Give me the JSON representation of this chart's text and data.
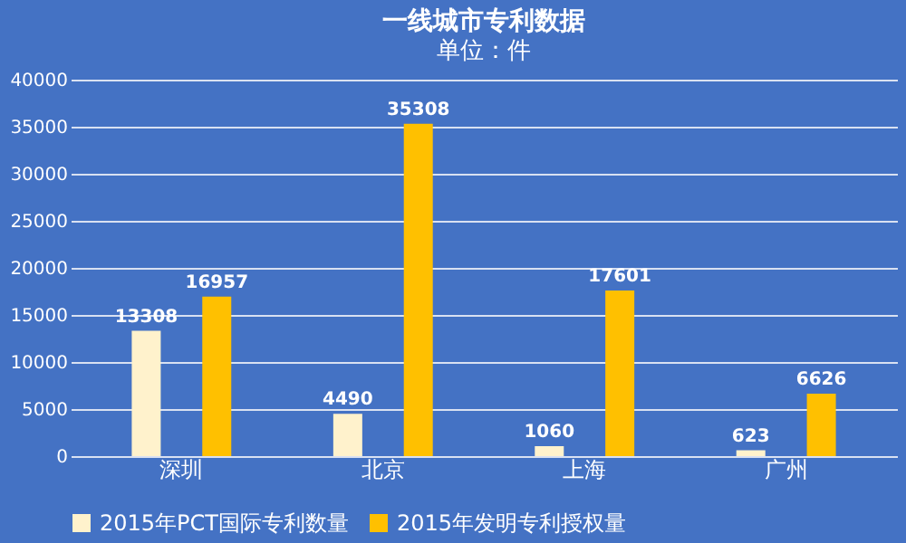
{
  "chart_data": {
    "type": "bar",
    "title": "一线城市专利数据",
    "subtitle": "单位：件",
    "categories": [
      "深圳",
      "北京",
      "上海",
      "广州"
    ],
    "series": [
      {
        "name": "2015年PCT国际专利数量",
        "color": "#fff2cc",
        "values": [
          13308,
          4490,
          1060,
          623
        ]
      },
      {
        "name": "2015年发明专利授权量",
        "color": "#ffc000",
        "values": [
          16957,
          35308,
          17601,
          6626
        ]
      }
    ],
    "ylim": [
      0,
      40000
    ],
    "yticks": [
      0,
      5000,
      10000,
      15000,
      20000,
      25000,
      30000,
      35000,
      40000
    ],
    "grid": "y",
    "legend": "bottom",
    "data_labels": true
  }
}
